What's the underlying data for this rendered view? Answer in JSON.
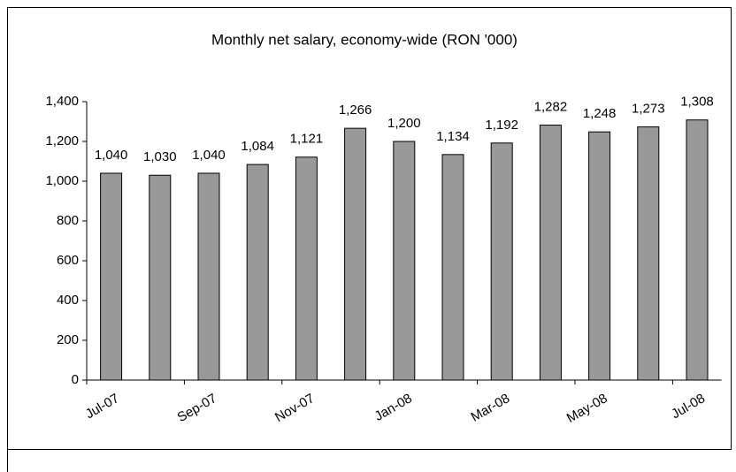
{
  "chart_data": {
    "type": "bar",
    "title": "Monthly net salary, economy-wide (RON '000)",
    "categories": [
      "Jul-07",
      null,
      "Sep-07",
      null,
      "Nov-07",
      null,
      "Jan-08",
      null,
      "Mar-08",
      null,
      "May-08",
      null,
      "Jul-08"
    ],
    "values": [
      1040,
      1030,
      1040,
      1084,
      1121,
      1266,
      1200,
      1134,
      1192,
      1282,
      1248,
      1273,
      1308
    ],
    "value_labels": [
      "1,040",
      "1,030",
      "1,040",
      "1,084",
      "1,121",
      "1,266",
      "1,200",
      "1,134",
      "1,192",
      "1,282",
      "1,248",
      "1,273",
      "1,308"
    ],
    "color": "#999999",
    "ylim": [
      0,
      1400
    ],
    "yticks": [
      0,
      200,
      400,
      600,
      800,
      {
        "value": 1000,
        "label": "1,000"
      },
      {
        "value": 1200,
        "label": "1,200"
      },
      {
        "value": 1400,
        "label": "1,400"
      }
    ],
    "grid": false
  }
}
